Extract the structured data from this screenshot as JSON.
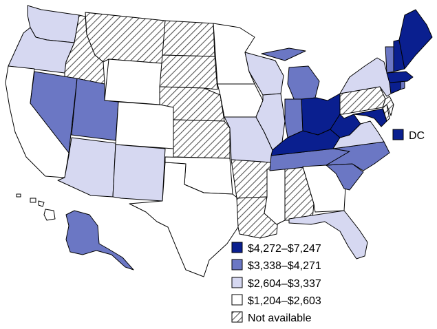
{
  "legend": {
    "items": [
      {
        "label": "$4,272–$7,247",
        "color": "#0a1f8f"
      },
      {
        "label": "$3,338–$4,271",
        "color": "#6b77c4"
      },
      {
        "label": "$2,604–$3,337",
        "color": "#d6d8f1"
      },
      {
        "label": "$1,204–$2,603",
        "color": "#ffffff"
      },
      {
        "label": "Not available",
        "color": "hatched"
      }
    ]
  },
  "dc_label": "DC"
}
